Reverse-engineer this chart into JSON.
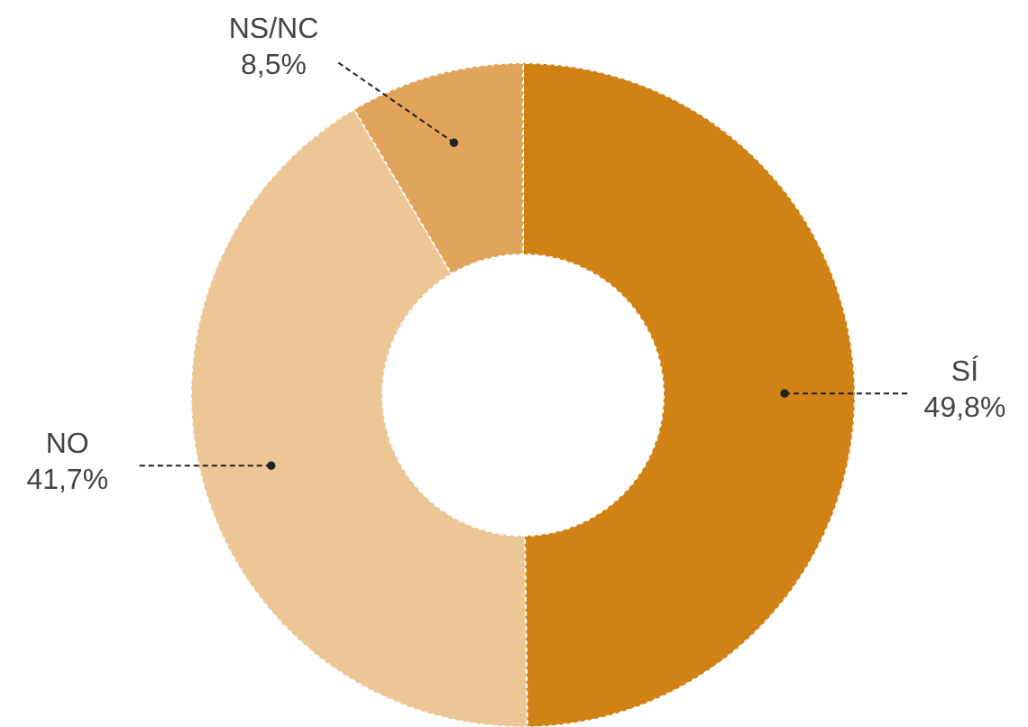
{
  "chart_data": {
    "type": "donut",
    "categories": [
      "SÍ",
      "NO",
      "NS/NC"
    ],
    "values": [
      49.8,
      41.7,
      8.5
    ],
    "colors": [
      "#d08314",
      "#edc696",
      "#e0a45a"
    ],
    "value_labels": [
      "49,8%",
      "41,7%",
      "8,5%"
    ]
  }
}
